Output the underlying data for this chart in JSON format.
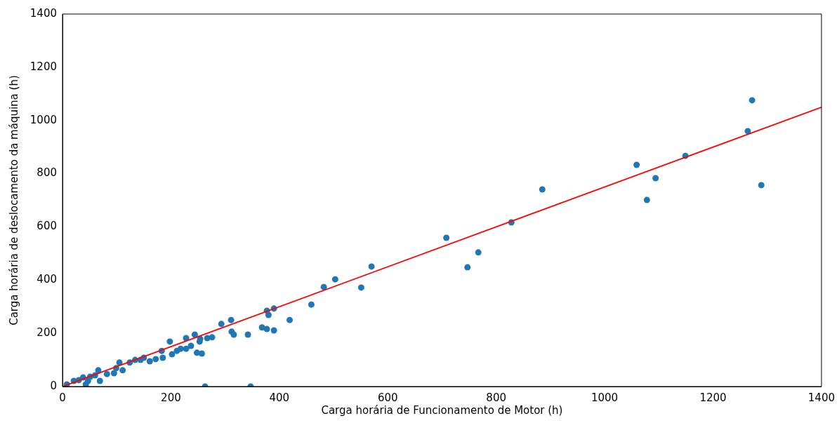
{
  "chart_data": {
    "type": "scatter",
    "xlabel": "Carga horária de Funcionamento de Motor (h)",
    "ylabel": "Carga horária de deslocamento da máquina (h)",
    "xlim": [
      0,
      1400
    ],
    "ylim": [
      0,
      1400
    ],
    "xticks": [
      0,
      200,
      400,
      600,
      800,
      1000,
      1200,
      1400
    ],
    "yticks": [
      0,
      200,
      400,
      600,
      800,
      1000,
      1200,
      1400
    ],
    "grid": false,
    "legend": false,
    "series": [
      {
        "type": "scatter",
        "color": "#1f77b4",
        "marker": "circle",
        "x": [
          8,
          21,
          30,
          38,
          43,
          47,
          51,
          60,
          66,
          69,
          82,
          95,
          99,
          105,
          111,
          124,
          134,
          144,
          150,
          161,
          172,
          183,
          185,
          198,
          202,
          211,
          218,
          228,
          228,
          237,
          244,
          248,
          253,
          254,
          257,
          263,
          267,
          276,
          293,
          311,
          312,
          316,
          342,
          347,
          368,
          377,
          377,
          380,
          390,
          390,
          419,
          459,
          482,
          503,
          551,
          570,
          708,
          747,
          767,
          828,
          885,
          1059,
          1078,
          1094,
          1149,
          1264,
          1272,
          1289
        ],
        "values": [
          8,
          21,
          24,
          34,
          8,
          21,
          37,
          42,
          61,
          21,
          47,
          50,
          69,
          90,
          61,
          90,
          100,
          100,
          108,
          95,
          103,
          134,
          108,
          169,
          121,
          134,
          142,
          182,
          142,
          153,
          195,
          127,
          169,
          179,
          124,
          0,
          182,
          185,
          235,
          250,
          206,
          195,
          195,
          0,
          222,
          285,
          216,
          269,
          293,
          211,
          250,
          308,
          374,
          403,
          372,
          451,
          559,
          448,
          504,
          617,
          741,
          833,
          701,
          783,
          867,
          960,
          1076,
          757
        ]
      },
      {
        "type": "line",
        "color": "#ff0000",
        "x": [
          0,
          1400
        ],
        "values": [
          0,
          1050
        ]
      }
    ]
  }
}
